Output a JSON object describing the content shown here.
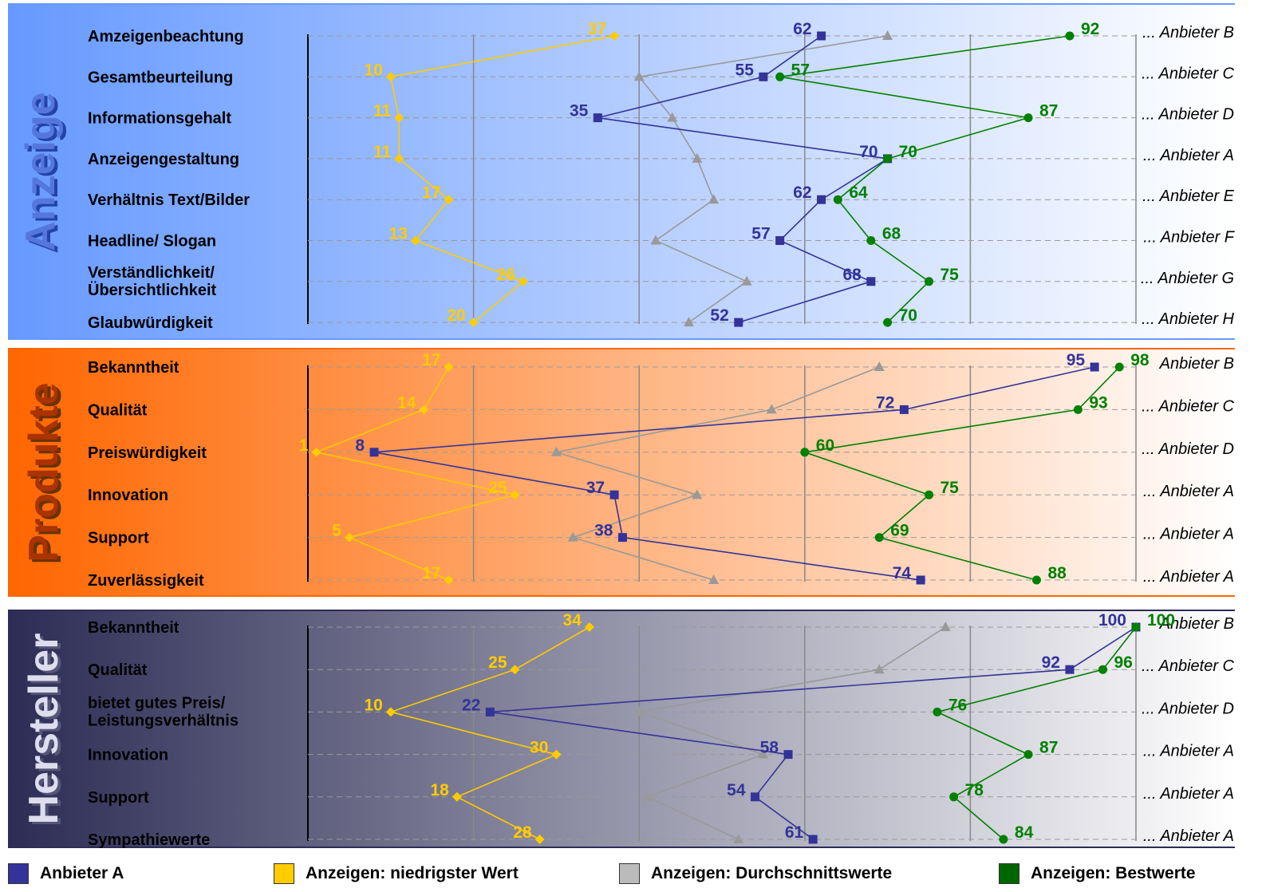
{
  "chart_data": [
    {
      "type": "line",
      "title": "Anzeige",
      "xlim": [
        0,
        100
      ],
      "categories": [
        "Amzeigenbeachtung",
        "Gesamtbeurteilung",
        "Informationsgehalt",
        "Anzeigengestaltung",
        "Verhältnis Text/Bilder",
        "Headline/ Slogan",
        "Verständlichkeit/ Übersichtlichkeit",
        "Glaubwürdigkeit"
      ],
      "providers": [
        "... Anbieter B",
        "... Anbieter C",
        "... Anbieter D",
        "... Anbieter A",
        "... Anbieter E",
        "... Anbieter F",
        "... Anbieter G",
        "... Anbieter H"
      ],
      "series": [
        {
          "name": "Anzeigen: niedrigster Wert",
          "color": "#FFCC00",
          "marker": "diamond",
          "values": [
            37,
            10,
            11,
            11,
            17,
            13,
            26,
            20
          ]
        },
        {
          "name": "Anzeigen: Durchschnittswerte",
          "color": "#999999",
          "marker": "triangle",
          "values": [
            70,
            40,
            44,
            47,
            49,
            42,
            53,
            46
          ]
        },
        {
          "name": "Anbieter A",
          "color": "#333399",
          "marker": "square",
          "values": [
            62,
            55,
            35,
            70,
            62,
            57,
            68,
            52
          ]
        },
        {
          "name": "Anzeigen: Bestwerte",
          "color": "#008000",
          "marker": "circle",
          "values": [
            92,
            57,
            87,
            70,
            64,
            68,
            75,
            70
          ]
        }
      ]
    },
    {
      "type": "line",
      "title": "Produkte",
      "xlim": [
        0,
        100
      ],
      "categories": [
        "Bekanntheit",
        "Qualität",
        "Preiswürdigkeit",
        "Innovation",
        "Support",
        "Zuverlässigkeit"
      ],
      "providers": [
        "Anbieter B",
        "... Anbieter C",
        "... Anbieter D",
        "... Anbieter A",
        "... Anbieter A",
        "... Anbieter A"
      ],
      "series": [
        {
          "name": "Anzeigen: niedrigster Wert",
          "color": "#FFCC00",
          "marker": "diamond",
          "values": [
            17,
            14,
            1,
            25,
            5,
            17
          ]
        },
        {
          "name": "Anzeigen: Durchschnittswerte",
          "color": "#999999",
          "marker": "triangle",
          "values": [
            69,
            56,
            30,
            47,
            32,
            49
          ]
        },
        {
          "name": "Anbieter A",
          "color": "#333399",
          "marker": "square",
          "values": [
            95,
            72,
            8,
            37,
            38,
            74
          ]
        },
        {
          "name": "Anzeigen: Bestwerte",
          "color": "#008000",
          "marker": "circle",
          "values": [
            98,
            93,
            60,
            75,
            69,
            88
          ]
        }
      ]
    },
    {
      "type": "line",
      "title": "Hersteller",
      "xlim": [
        0,
        100
      ],
      "categories": [
        "Bekanntheit",
        "Qualität",
        "bietet gutes Preis/ Leistungsverhältnis",
        "Innovation",
        "Support",
        "Sympathiewerte"
      ],
      "providers": [
        "Anbieter B",
        "... Anbieter C",
        "... Anbieter D",
        "... Anbieter A",
        "... Anbieter A",
        "... Anbieter A"
      ],
      "series": [
        {
          "name": "Anzeigen: niedrigster Wert",
          "color": "#FFCC00",
          "marker": "diamond",
          "values": [
            34,
            25,
            10,
            30,
            18,
            28
          ]
        },
        {
          "name": "Anzeigen: Durchschnittswerte",
          "color": "#999999",
          "marker": "triangle",
          "values": [
            77,
            69,
            40,
            55,
            41,
            52
          ]
        },
        {
          "name": "Anbieter A",
          "color": "#333399",
          "marker": "square",
          "values": [
            100,
            92,
            22,
            58,
            54,
            61
          ]
        },
        {
          "name": "Anzeigen: Bestwerte",
          "color": "#008000",
          "marker": "circle",
          "values": [
            100,
            96,
            76,
            87,
            78,
            84
          ]
        }
      ]
    }
  ],
  "band_colors": {
    "Anzeige": "#6699FF",
    "Produkte": "#FF6600",
    "Hersteller": "#2C2C55"
  },
  "legend": [
    {
      "label": "Anbieter A",
      "color": "#333399"
    },
    {
      "label": "Anzeigen: niedrigster Wert",
      "color": "#FFCC00"
    },
    {
      "label": "Anzeigen: Durchschnittswerte",
      "color": "#BBBBBB"
    },
    {
      "label": "Anzeigen: Bestwerte",
      "color": "#006600"
    }
  ]
}
